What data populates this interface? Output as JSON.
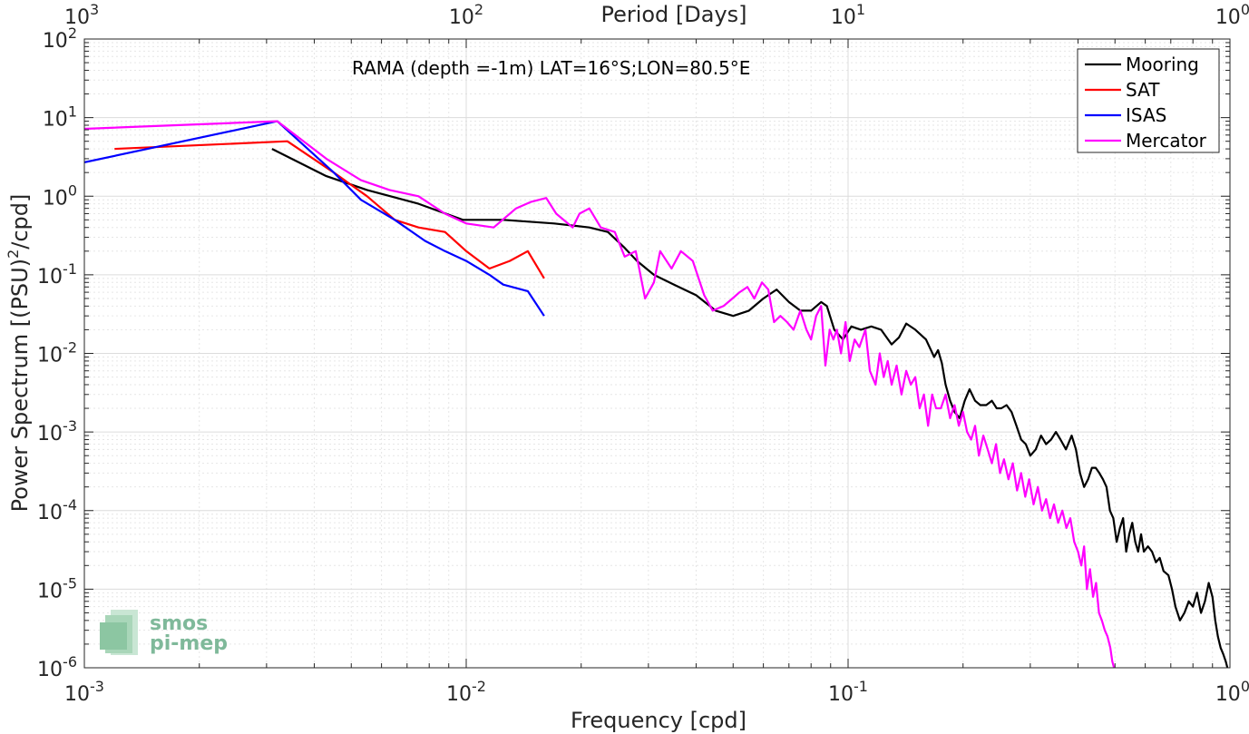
{
  "chart_data": {
    "type": "line",
    "title": "",
    "annotation": "RAMA (depth =-1m) LAT=16°S;LON=80.5°E",
    "xlabel": "Frequency [cpd]",
    "ylabel_main": "Power Spectrum [(PSU)",
    "ylabel_sup": "2",
    "ylabel_tail": "/cpd]",
    "top_xlabel": "Period [Days]",
    "x_scale": "log",
    "y_scale": "log",
    "xlim": [
      0.001,
      1
    ],
    "ylim": [
      1e-06,
      100
    ],
    "grid": true,
    "legend_position": "top-right",
    "x_ticks": [
      {
        "value": 0.001,
        "base": "10",
        "exp": "-3"
      },
      {
        "value": 0.01,
        "base": "10",
        "exp": "-2"
      },
      {
        "value": 0.1,
        "base": "10",
        "exp": "-1"
      },
      {
        "value": 1,
        "base": "10",
        "exp": "0"
      }
    ],
    "y_ticks": [
      {
        "value": 1e-06,
        "base": "10",
        "exp": "-6"
      },
      {
        "value": 1e-05,
        "base": "10",
        "exp": "-5"
      },
      {
        "value": 0.0001,
        "base": "10",
        "exp": "-4"
      },
      {
        "value": 0.001,
        "base": "10",
        "exp": "-3"
      },
      {
        "value": 0.01,
        "base": "10",
        "exp": "-2"
      },
      {
        "value": 0.1,
        "base": "10",
        "exp": "-1"
      },
      {
        "value": 1,
        "base": "10",
        "exp": "0"
      },
      {
        "value": 10,
        "base": "10",
        "exp": "1"
      },
      {
        "value": 100,
        "base": "10",
        "exp": "2"
      }
    ],
    "top_ticks": [
      {
        "value": 0.001,
        "base": "10",
        "exp": "3"
      },
      {
        "value": 0.01,
        "base": "10",
        "exp": "2"
      },
      {
        "value": 0.1,
        "base": "10",
        "exp": "1"
      },
      {
        "value": 1,
        "base": "10",
        "exp": "0"
      }
    ],
    "series": [
      {
        "name": "Mooring",
        "color": "#000000",
        "x": [
          0.0031,
          0.0043,
          0.0055,
          0.0075,
          0.0098,
          0.0125,
          0.017,
          0.021,
          0.0235,
          0.026,
          0.028,
          0.031,
          0.035,
          0.04,
          0.045,
          0.05,
          0.055,
          0.06,
          0.065,
          0.07,
          0.075,
          0.08,
          0.085,
          0.088,
          0.092,
          0.097,
          0.102,
          0.108,
          0.115,
          0.122,
          0.13,
          0.136,
          0.142,
          0.15,
          0.16,
          0.168,
          0.172,
          0.176,
          0.18,
          0.185,
          0.19,
          0.196,
          0.202,
          0.208,
          0.215,
          0.222,
          0.23,
          0.238,
          0.245,
          0.252,
          0.26,
          0.268,
          0.276,
          0.284,
          0.292,
          0.3,
          0.31,
          0.32,
          0.33,
          0.34,
          0.35,
          0.36,
          0.372,
          0.385,
          0.395,
          0.405,
          0.415,
          0.425,
          0.435,
          0.445,
          0.455,
          0.465,
          0.475,
          0.485,
          0.495,
          0.505,
          0.515,
          0.525,
          0.535,
          0.545,
          0.555,
          0.565,
          0.575,
          0.585,
          0.595,
          0.61,
          0.625,
          0.64,
          0.655,
          0.67,
          0.69,
          0.705,
          0.72,
          0.74,
          0.76,
          0.78,
          0.8,
          0.82,
          0.84,
          0.86,
          0.88,
          0.9,
          0.915,
          0.93,
          0.945,
          0.96,
          0.975,
          0.985,
          0.995
        ],
        "y": [
          4.0,
          1.8,
          1.2,
          0.8,
          0.5,
          0.5,
          0.45,
          0.4,
          0.35,
          0.22,
          0.15,
          0.1,
          0.075,
          0.055,
          0.035,
          0.03,
          0.035,
          0.05,
          0.065,
          0.045,
          0.035,
          0.035,
          0.045,
          0.04,
          0.02,
          0.015,
          0.022,
          0.02,
          0.022,
          0.02,
          0.013,
          0.016,
          0.024,
          0.02,
          0.015,
          0.009,
          0.011,
          0.0075,
          0.004,
          0.0025,
          0.0018,
          0.0015,
          0.0025,
          0.0035,
          0.0025,
          0.0022,
          0.0022,
          0.0025,
          0.002,
          0.002,
          0.0022,
          0.0018,
          0.0012,
          0.0008,
          0.0007,
          0.0005,
          0.0006,
          0.0009,
          0.0007,
          0.0008,
          0.001,
          0.0008,
          0.0006,
          0.0009,
          0.0006,
          0.0003,
          0.0002,
          0.00025,
          0.00035,
          0.00035,
          0.0003,
          0.00025,
          0.0002,
          0.0001,
          8e-05,
          4e-05,
          6e-05,
          8e-05,
          3e-05,
          5e-05,
          7e-05,
          4e-05,
          3e-05,
          5e-05,
          3e-05,
          3.5e-05,
          3e-05,
          2.2e-05,
          2.5e-05,
          1.7e-05,
          1.5e-05,
          1e-05,
          6e-06,
          4e-06,
          5e-06,
          7e-06,
          6e-06,
          9e-06,
          5e-06,
          7e-06,
          1.2e-05,
          8e-06,
          4e-06,
          2.5e-06,
          1.8e-06,
          1.5e-06,
          1.2e-06,
          1e-06,
          8e-07
        ]
      },
      {
        "name": "SAT",
        "color": "#ff0000",
        "x": [
          0.0012,
          0.0034,
          0.0045,
          0.0055,
          0.0065,
          0.0075,
          0.0088,
          0.01,
          0.0115,
          0.013,
          0.0145,
          0.016
        ],
        "y": [
          4.0,
          5.0,
          2.0,
          1.0,
          0.5,
          0.4,
          0.35,
          0.2,
          0.12,
          0.15,
          0.2,
          0.09
        ]
      },
      {
        "name": "ISAS",
        "color": "#0000ff",
        "x": [
          0.001,
          0.0032,
          0.0045,
          0.0053,
          0.0065,
          0.0078,
          0.0088,
          0.01,
          0.0115,
          0.0125,
          0.0145,
          0.016
        ],
        "y": [
          2.7,
          9.0,
          2.0,
          0.9,
          0.5,
          0.27,
          0.2,
          0.15,
          0.1,
          0.075,
          0.062,
          0.03
        ]
      },
      {
        "name": "Mercator",
        "color": "#ff00ff",
        "x": [
          0.001,
          0.0032,
          0.0043,
          0.0053,
          0.0063,
          0.0075,
          0.0088,
          0.01,
          0.0118,
          0.0135,
          0.0148,
          0.0162,
          0.0172,
          0.019,
          0.0198,
          0.021,
          0.0225,
          0.0245,
          0.026,
          0.0278,
          0.0294,
          0.031,
          0.0322,
          0.0345,
          0.0365,
          0.0392,
          0.042,
          0.0442,
          0.0472,
          0.0498,
          0.052,
          0.0545,
          0.0568,
          0.0595,
          0.0618,
          0.064,
          0.0665,
          0.0692,
          0.072,
          0.075,
          0.0778,
          0.08,
          0.0825,
          0.085,
          0.0872,
          0.0895,
          0.0915,
          0.0935,
          0.0958,
          0.0985,
          0.101,
          0.104,
          0.107,
          0.111,
          0.114,
          0.118,
          0.121,
          0.124,
          0.127,
          0.13,
          0.134,
          0.138,
          0.142,
          0.146,
          0.15,
          0.154,
          0.158,
          0.162,
          0.166,
          0.17,
          0.175,
          0.18,
          0.185,
          0.19,
          0.195,
          0.2,
          0.205,
          0.21,
          0.215,
          0.22,
          0.226,
          0.232,
          0.238,
          0.244,
          0.25,
          0.256,
          0.263,
          0.27,
          0.277,
          0.284,
          0.291,
          0.298,
          0.306,
          0.314,
          0.322,
          0.33,
          0.338,
          0.346,
          0.355,
          0.364,
          0.373,
          0.382,
          0.391,
          0.4,
          0.408,
          0.415,
          0.422,
          0.43,
          0.438,
          0.446,
          0.454,
          0.462,
          0.47,
          0.478,
          0.486,
          0.492,
          0.497
        ],
        "y": [
          7.2,
          9.0,
          3.0,
          1.6,
          1.2,
          1.0,
          0.6,
          0.45,
          0.4,
          0.7,
          0.85,
          0.95,
          0.6,
          0.4,
          0.6,
          0.7,
          0.4,
          0.35,
          0.17,
          0.2,
          0.05,
          0.08,
          0.2,
          0.12,
          0.2,
          0.15,
          0.055,
          0.035,
          0.04,
          0.05,
          0.06,
          0.07,
          0.05,
          0.08,
          0.065,
          0.025,
          0.03,
          0.025,
          0.02,
          0.035,
          0.02,
          0.015,
          0.03,
          0.04,
          0.007,
          0.02,
          0.015,
          0.02,
          0.01,
          0.025,
          0.008,
          0.015,
          0.012,
          0.02,
          0.006,
          0.004,
          0.01,
          0.005,
          0.008,
          0.004,
          0.007,
          0.003,
          0.006,
          0.004,
          0.005,
          0.002,
          0.003,
          0.0012,
          0.003,
          0.002,
          0.002,
          0.003,
          0.0015,
          0.0022,
          0.0012,
          0.0018,
          0.001,
          0.0008,
          0.0012,
          0.0005,
          0.0009,
          0.0006,
          0.0004,
          0.0007,
          0.0003,
          0.00045,
          0.00025,
          0.0004,
          0.00018,
          0.0003,
          0.00015,
          0.00025,
          0.00012,
          0.0002,
          0.0001,
          0.00014,
          8e-05,
          0.00012,
          7e-05,
          0.0001,
          6e-05,
          8e-05,
          4e-05,
          3e-05,
          2e-05,
          3.5e-05,
          1e-05,
          1.8e-05,
          8e-06,
          1.2e-05,
          5e-06,
          4e-06,
          3e-06,
          2.5e-06,
          1.8e-06,
          1.2e-06,
          1e-06
        ]
      }
    ]
  },
  "logo": {
    "line1": "smos",
    "line2": "pi-mep"
  }
}
